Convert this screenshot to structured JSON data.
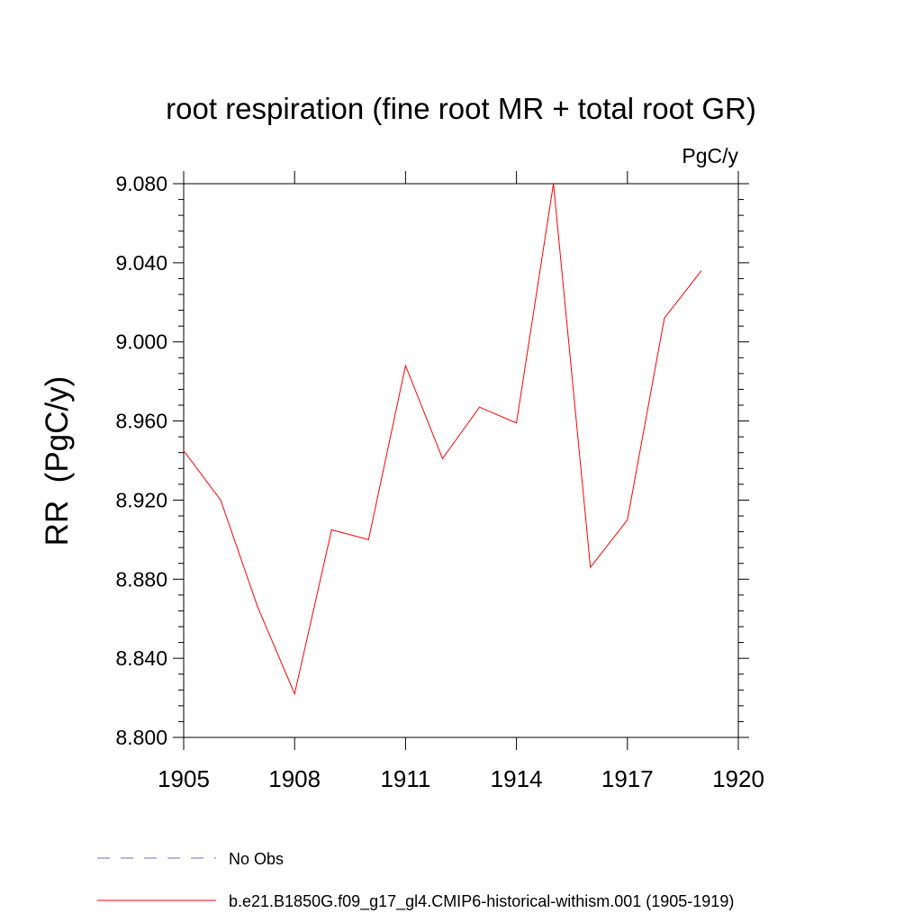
{
  "chart_data": {
    "type": "line",
    "title": "root respiration (fine root MR + total root GR)",
    "units": "PgC/y",
    "ylabel": "RR  (PgC/y)",
    "xlabel": "",
    "xlim": [
      1905,
      1920
    ],
    "ylim": [
      8.8,
      9.08
    ],
    "x_ticks": [
      "1905",
      "1908",
      "1911",
      "1914",
      "1917",
      "1920"
    ],
    "y_ticks": [
      "8.800",
      "8.840",
      "8.880",
      "8.920",
      "8.960",
      "9.000",
      "9.040",
      "9.080"
    ],
    "grid": false,
    "series": [
      {
        "name": "b.e21.B1850G.f09_g17_gl4.CMIP6-historical-withism.001 (1905-1919)",
        "color": "#ff0000",
        "x": [
          1905,
          1906,
          1907,
          1908,
          1909,
          1910,
          1911,
          1912,
          1913,
          1914,
          1915,
          1916,
          1917,
          1918,
          1919
        ],
        "values": [
          8.945,
          8.92,
          8.866,
          8.822,
          8.905,
          8.9,
          8.988,
          8.941,
          8.967,
          8.959,
          9.08,
          8.886,
          8.91,
          9.012,
          9.036
        ]
      }
    ],
    "legend": {
      "position": "bottom",
      "entries": [
        {
          "label": "No Obs",
          "color": "#7b68c8",
          "style": "dashed"
        },
        {
          "label": "b.e21.B1850G.f09_g17_gl4.CMIP6-historical-withism.001 (1905-1919)",
          "color": "#ff0000",
          "style": "solid"
        }
      ]
    }
  }
}
